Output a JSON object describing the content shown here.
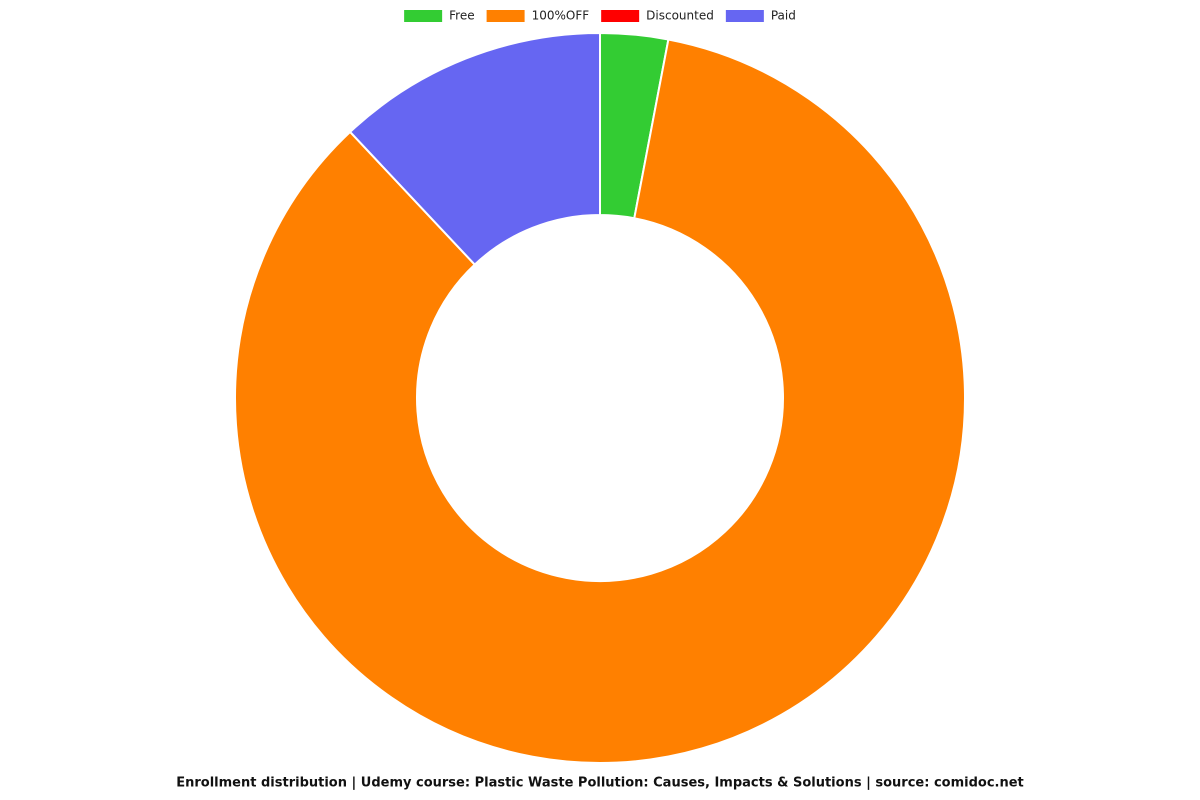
{
  "chart_data": {
    "type": "doughnut",
    "title": "Enrollment distribution | Udemy course: Plastic Waste Pollution: Causes, Impacts & Solutions | source: comidoc.net",
    "categories": [
      "Free",
      "100%OFF",
      "Discounted",
      "Paid"
    ],
    "values": [
      3,
      85,
      0,
      12
    ],
    "colors": [
      "#33cc33",
      "#ff8000",
      "#ff0000",
      "#6666f2"
    ],
    "legend": "top"
  }
}
